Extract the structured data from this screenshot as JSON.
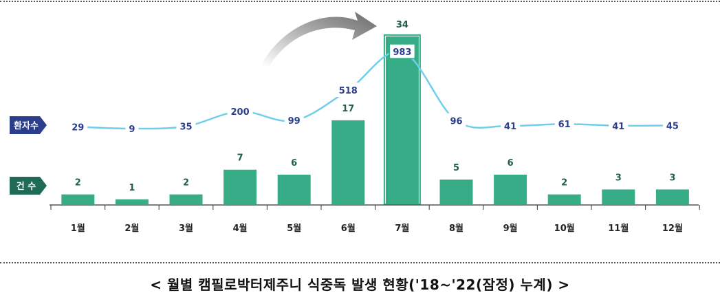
{
  "caption": "< 월별 캠필로박터제주니 식중독 발생 현황('18~'22(잠정) 누계) >",
  "chart_data": {
    "type": "bar",
    "categories": [
      "1월",
      "2월",
      "3월",
      "4월",
      "5월",
      "6월",
      "7월",
      "8월",
      "9월",
      "10월",
      "11월",
      "12월"
    ],
    "series": [
      {
        "name": "건 수",
        "type": "bar",
        "values": [
          2,
          1,
          2,
          7,
          6,
          17,
          34,
          5,
          6,
          2,
          3,
          3
        ]
      },
      {
        "name": "환자수",
        "type": "line",
        "values": [
          29,
          9,
          35,
          200,
          99,
          518,
          983,
          96,
          41,
          61,
          41,
          45
        ]
      }
    ],
    "highlight_category": "7월",
    "grid": false,
    "colors": {
      "bar": "#36AD86",
      "bar_label": "#1F5E4A",
      "line": "#6FCFEA",
      "line_label": "#2B3E8C",
      "patient_badge": "#2B3E8C",
      "case_badge": "#1F6B55",
      "axis": "#555555"
    }
  }
}
